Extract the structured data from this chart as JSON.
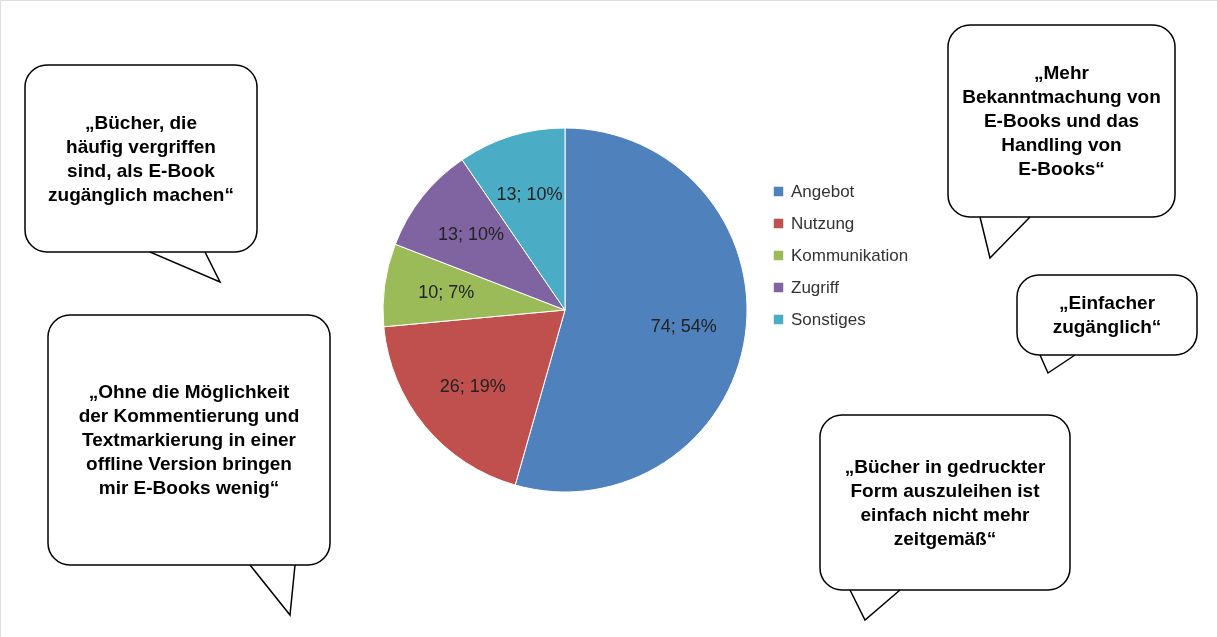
{
  "chart_data": {
    "type": "pie",
    "categories": [
      "Angebot",
      "Nutzung",
      "Kommunikation",
      "Zugriff",
      "Sonstiges"
    ],
    "values": [
      74,
      26,
      10,
      13,
      13
    ],
    "colors": [
      "#4f81bd",
      "#c0504d",
      "#9bbb59",
      "#8064a2",
      "#4bacc6"
    ],
    "value_labels": [
      "74; 54%",
      "26; 19%",
      "10; 7%",
      "13; 10%",
      "13; 10%"
    ],
    "legend": "right",
    "annotations": [
      "„Bücher, die häufig vergriffen sind, als E-Book zugänglich machen“",
      "„Ohne die Möglichkeit der Kommentierung und Textmarkierung in einer offline Version bringen mir E-Books wenig“",
      "„Mehr Bekanntmachung von E-Books und das Handling von E-Books“",
      "„Einfacher zugänglich“",
      "„Bücher in gedruckter Form auszuleihen ist einfach nicht mehr zeitgemäß“"
    ]
  }
}
